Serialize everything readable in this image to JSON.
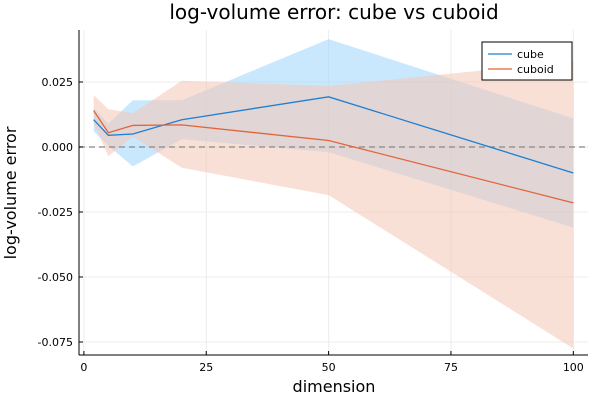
{
  "chart_data": {
    "type": "line",
    "title": "log-volume error: cube vs cuboid",
    "xlabel": "dimension",
    "ylabel": "log-volume error",
    "xlim": [
      -1,
      103
    ],
    "ylim": [
      -0.08,
      0.045
    ],
    "x_ticks": [
      0,
      25,
      50,
      75,
      100
    ],
    "x_tick_labels": [
      "0",
      "25",
      "50",
      "75",
      "100"
    ],
    "y_ticks": [
      0.025,
      0.0,
      -0.025,
      -0.05,
      -0.075
    ],
    "y_tick_labels": [
      "0.025",
      "0.000",
      "-0.025",
      "-0.050",
      "-0.075"
    ],
    "grid": true,
    "legend": "top-right",
    "reference_line": {
      "y": 0.0,
      "style": "dashed",
      "color": "#888888"
    },
    "x": [
      2,
      5,
      10,
      20,
      50,
      100
    ],
    "series": [
      {
        "name": "cube",
        "color": "#1f7fd3",
        "band_color": "#9fd6fb",
        "values": [
          0.0105,
          0.0045,
          0.005,
          0.0105,
          0.0193,
          -0.01
        ],
        "lower": [
          0.006,
          0.0005,
          -0.0075,
          0.003,
          -0.002,
          -0.031
        ],
        "upper": [
          0.015,
          0.009,
          0.018,
          0.018,
          0.0415,
          0.011
        ]
      },
      {
        "name": "cuboid",
        "color": "#e2643a",
        "band_color": "#f4c7b4",
        "values": [
          0.014,
          0.0055,
          0.0083,
          0.0085,
          0.0025,
          -0.0215
        ],
        "lower": [
          0.009,
          -0.0035,
          0.004,
          -0.008,
          -0.0185,
          -0.0775
        ],
        "upper": [
          0.02,
          0.0145,
          0.013,
          0.0255,
          0.0235,
          0.033
        ]
      }
    ]
  }
}
